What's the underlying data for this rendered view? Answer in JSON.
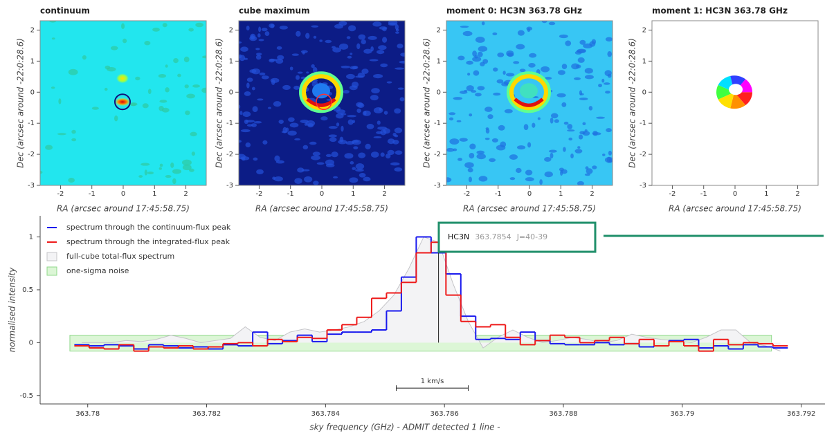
{
  "chart_data": [
    {
      "type": "image",
      "title": "continuum",
      "xlabel": "RA (arcsec around 17:45:58.75)",
      "ylabel": "Dec (arcsec around -22:0:28.6)",
      "xlim": [
        -2.65,
        2.65
      ],
      "ylim": [
        -3,
        2.3
      ],
      "xticks": [
        -2,
        -1,
        0,
        1,
        2
      ],
      "yticks": [
        -3,
        -2,
        -1,
        0,
        1,
        2
      ]
    },
    {
      "type": "image",
      "title": "cube maximum",
      "xlabel": "RA (arcsec around 17:45:58.75)",
      "ylabel": "Dec (arcsec around -22:0:28.6)",
      "xlim": [
        -2.65,
        2.65
      ],
      "ylim": [
        -3,
        2.3
      ],
      "xticks": [
        -2,
        -1,
        0,
        1,
        2
      ],
      "yticks": [
        -3,
        -2,
        -1,
        0,
        1,
        2
      ]
    },
    {
      "type": "image",
      "title": "moment 0: HC3N 363.78 GHz",
      "xlabel": "RA (arcsec around 17:45:58.75)",
      "ylabel": "Dec (arcsec around -22:0:28.6)",
      "xlim": [
        -2.65,
        2.65
      ],
      "ylim": [
        -3,
        2.3
      ],
      "xticks": [
        -2,
        -1,
        0,
        1,
        2
      ],
      "yticks": [
        -3,
        -2,
        -1,
        0,
        1,
        2
      ]
    },
    {
      "type": "image",
      "title": "moment 1: HC3N 363.78 GHz",
      "xlabel": "RA (arcsec around 17:45:58.75)",
      "ylabel": "Dec (arcsec around -22:0:28.6)",
      "xlim": [
        -2.65,
        2.65
      ],
      "ylim": [
        -3,
        2.3
      ],
      "xticks": [
        -2,
        -1,
        0,
        1,
        2
      ],
      "yticks": [
        -3,
        -2,
        -1,
        0,
        1,
        2
      ]
    },
    {
      "type": "step",
      "xlabel": "sky frequency (GHz) - ADMIT detected 1 line -",
      "ylabel": "normalised intensity",
      "xlim": [
        363.7792,
        363.7924
      ],
      "ylim": [
        -0.58,
        1.2
      ],
      "xticks": [
        363.78,
        363.782,
        363.784,
        363.786,
        363.788,
        363.79,
        363.792
      ],
      "yticks": [
        -0.5,
        0,
        0.5,
        1
      ],
      "x": [
        363.7799,
        363.78015,
        363.7804,
        363.78065,
        363.7809,
        363.78115,
        363.7814,
        363.78165,
        363.7819,
        363.78215,
        363.7824,
        363.78265,
        363.7829,
        363.78315,
        363.7834,
        363.78365,
        363.7839,
        363.78415,
        363.7844,
        363.78465,
        363.7849,
        363.78515,
        363.7854,
        363.78565,
        363.7859,
        363.78615,
        363.7864,
        363.78665,
        363.7869,
        363.78715,
        363.7874,
        363.78765,
        363.7879,
        363.78815,
        363.7884,
        363.78865,
        363.7889,
        363.78915,
        363.7894,
        363.78965,
        363.7899,
        363.79015,
        363.7904,
        363.79065,
        363.7909,
        363.79115,
        363.7914,
        363.79165
      ],
      "series": [
        {
          "name": "spectrum through the continuum-flux peak",
          "color": "#1a1aee",
          "values": [
            -0.02,
            -0.03,
            -0.02,
            -0.03,
            -0.06,
            -0.02,
            -0.03,
            -0.05,
            -0.04,
            -0.06,
            -0.02,
            -0.03,
            0.1,
            -0.01,
            0.02,
            0.07,
            0.01,
            0.08,
            0.1,
            0.1,
            0.12,
            0.3,
            0.62,
            1.0,
            0.85,
            0.65,
            0.25,
            0.03,
            0.04,
            0.03,
            0.1,
            0.02,
            -0.01,
            -0.02,
            -0.02,
            0.0,
            -0.02,
            -0.01,
            -0.04,
            -0.03,
            0.02,
            0.03,
            -0.05,
            -0.03,
            -0.06,
            -0.02,
            -0.04,
            -0.05
          ]
        },
        {
          "name": "spectrum through the integrated-flux peak",
          "color": "#ee1a1a",
          "values": [
            -0.03,
            -0.05,
            -0.06,
            -0.02,
            -0.08,
            -0.04,
            -0.05,
            -0.03,
            -0.06,
            -0.04,
            -0.01,
            0.0,
            -0.03,
            0.03,
            0.01,
            0.05,
            0.04,
            0.12,
            0.17,
            0.24,
            0.42,
            0.47,
            0.57,
            0.85,
            0.95,
            0.45,
            0.2,
            0.15,
            0.17,
            0.05,
            -0.02,
            0.02,
            0.07,
            0.05,
            0.0,
            0.02,
            0.05,
            -0.01,
            0.03,
            -0.03,
            0.01,
            -0.03,
            -0.08,
            0.03,
            -0.02,
            0.0,
            -0.01,
            -0.03
          ]
        },
        {
          "name": "full-cube total-flux spectrum",
          "color": "#c4c4c8",
          "fill": "#f3f3f5",
          "values": [
            0,
            0,
            0,
            0.02,
            0.01,
            0.03,
            0.07,
            0.04,
            0.0,
            0.02,
            0.04,
            0.15,
            0.05,
            0.02,
            0.1,
            0.13,
            0.1,
            0.12,
            0.15,
            0.2,
            0.3,
            0.45,
            0.7,
            1.0,
            0.95,
            0.55,
            0.2,
            -0.05,
            0.05,
            0.12,
            0.05,
            0.0,
            0.02,
            0.05,
            0.03,
            0.0,
            0.02,
            0.08,
            0.05,
            0.03,
            0.02,
            0.0,
            0.05,
            0.12,
            0.12,
            0.0,
            -0.03,
            -0.08
          ]
        }
      ],
      "noise": {
        "name": "one-sigma noise",
        "color": "#8fd88a",
        "fill": "#dcf6d6",
        "x": [
          363.7797,
          363.7915
        ],
        "low": -0.08,
        "high": 0.07
      },
      "line_marker": {
        "x": 363.7859,
        "top": 0.85
      },
      "annotation": {
        "species": "HC3N",
        "frequency": "363.7854",
        "transition": "J=40-39"
      },
      "scale_bar": {
        "label": "1 km/s",
        "x": [
          363.78519,
          363.7864
        ],
        "y": -0.43
      }
    }
  ]
}
